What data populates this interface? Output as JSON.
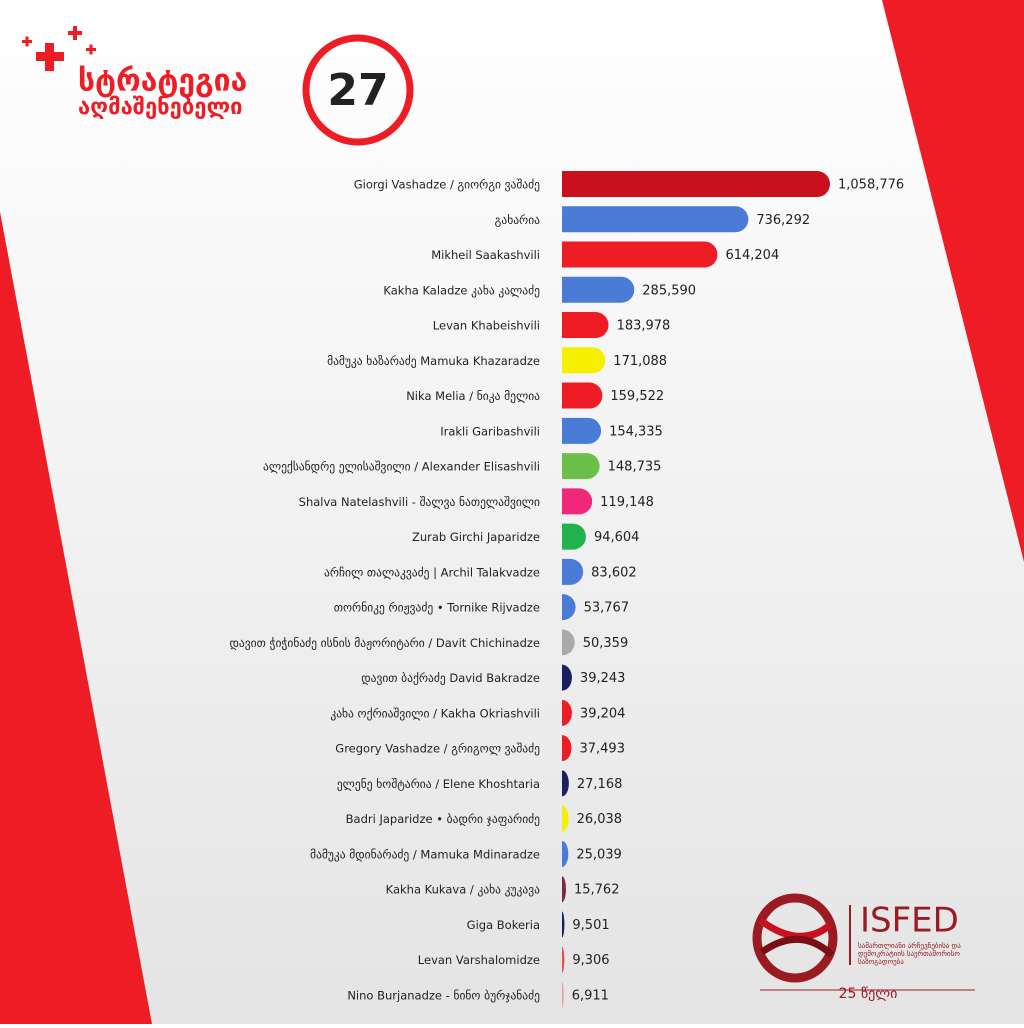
{
  "header": {
    "title_line1": "სტრატეგია",
    "title_line2": "აღმაშენებელი",
    "badge": "27"
  },
  "footer": {
    "org": "ISFED",
    "org_full": "სამართლიანი არჩევნებისა და დემოკრატიის საერთაშორისო საზოგადოება",
    "anniversary": "25 წელი"
  },
  "chart_data": {
    "type": "bar",
    "orientation": "horizontal",
    "categories": [
      "Giorgi Vashadze / გიორგი ვაშაძე",
      "გახარია",
      "Mikheil Saakashvili",
      "Kakha Kaladze კახა კალაძე",
      "Levan Khabeishvili",
      "მამუკა ხაზარაძე Mamuka Khazaradze",
      "Nika Melia / ნიკა მელია",
      "Irakli Garibashvili",
      "ალექსანდრე ელისაშვილი / Alexander Elisashvili",
      "Shalva Natelashvili - შალვა ნათელაშვილი",
      "Zurab Girchi Japaridze",
      "არჩილ თალაკვაძე | Archil Talakvadze",
      "თორნიკე რიჟვაძე • Tornike Rijvadze",
      "დავით ჭიჭინაძე ისნის მაჟორიტარი / Davit Chichinadze",
      "დავით ბაქრაძე David Bakradze",
      "კახა ოქრიაშვილი / Kakha Okriashvili",
      "Gregory Vashadze / გრიგოლ ვაშაძე",
      "ელენე ხოშტარია / Elene Khoshtaria",
      "Badri Japaridze • ბადრი ჯაფარიძე",
      "მამუკა მდინარაძე / Mamuka Mdinaradze",
      "Kakha Kukava / კახა კუკავა",
      "Giga Bokeria",
      "Levan Varshalomidze",
      "Nino Burjanadze - ნინო ბურჯანაძე"
    ],
    "values": [
      1058776,
      736292,
      614204,
      285590,
      183978,
      171088,
      159522,
      154335,
      148735,
      119148,
      94604,
      83602,
      53767,
      50359,
      39243,
      39204,
      37493,
      27168,
      26038,
      25039,
      15762,
      9501,
      9306,
      6911
    ],
    "value_labels": [
      "1,058,776",
      "736,292",
      "614,204",
      "285,590",
      "183,978",
      "171,088",
      "159,522",
      "154,335",
      "148,735",
      "119,148",
      "94,604",
      "83,602",
      "53,767",
      "50,359",
      "39,243",
      "39,204",
      "37,493",
      "27,168",
      "26,038",
      "25,039",
      "15,762",
      "9,501",
      "9,306",
      "6,911"
    ],
    "colors": [
      "#c8101e",
      "#4a7bd6",
      "#ee1c25",
      "#4a7bd6",
      "#ee1c25",
      "#f5f000",
      "#ee1c25",
      "#4a7bd6",
      "#6cbf4a",
      "#f0287a",
      "#22b14c",
      "#4a7bd6",
      "#4a7bd6",
      "#aaaaaa",
      "#1a2060",
      "#ee1c25",
      "#ee1c25",
      "#1a2060",
      "#f5f000",
      "#4a7bd6",
      "#7a2a4a",
      "#1a2060",
      "#e85050",
      "#e8a0a0"
    ]
  }
}
